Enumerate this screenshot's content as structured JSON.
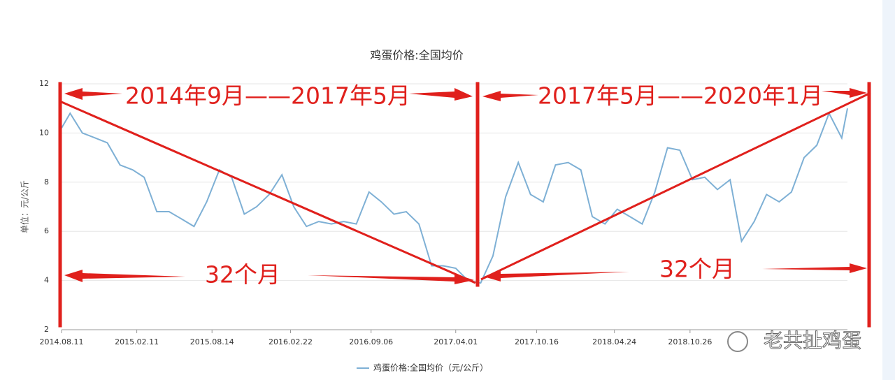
{
  "chart_data": {
    "type": "line",
    "title": "鸡蛋价格:全国均价",
    "y_label": "单位：元/公斤",
    "annotations": [
      "2014年9月——2017年5月",
      "2017年5月——2020年1月",
      "32个月",
      "32个月"
    ],
    "x": [
      "2014.08.11",
      "2014.09.01",
      "2014.10.01",
      "2014.11.01",
      "2014.12.01",
      "2015.01.01",
      "2015.02.01",
      "2015.03.01",
      "2015.04.01",
      "2015.05.01",
      "2015.06.01",
      "2015.07.01",
      "2015.08.01",
      "2015.09.01",
      "2015.10.01",
      "2015.11.01",
      "2015.12.01",
      "2016.01.01",
      "2016.02.01",
      "2016.03.01",
      "2016.04.01",
      "2016.05.01",
      "2016.06.01",
      "2016.07.01",
      "2016.08.01",
      "2016.09.01",
      "2016.10.01",
      "2016.11.01",
      "2016.12.01",
      "2017.01.01",
      "2017.02.01",
      "2017.03.01",
      "2017.04.01",
      "2017.05.01",
      "2017.06.01",
      "2017.07.01",
      "2017.08.01",
      "2017.09.01",
      "2017.10.01",
      "2017.11.01",
      "2017.12.01",
      "2018.01.01",
      "2018.02.01",
      "2018.03.01",
      "2018.04.01",
      "2018.05.01",
      "2018.06.01",
      "2018.07.01",
      "2018.08.01",
      "2018.09.01",
      "2018.10.01",
      "2018.11.01",
      "2018.12.01",
      "2019.01.01",
      "2019.02.01",
      "2019.03.01",
      "2019.04.01",
      "2019.05.01",
      "2019.06.01",
      "2019.07.01",
      "2019.08.01",
      "2019.09.01",
      "2019.10.01",
      "2019.11.01",
      "2019.11.15"
    ],
    "series": [
      {
        "name": "鸡蛋价格:全国均价（元/公斤）",
        "color": "#7eb0d5",
        "values": [
          10.2,
          10.8,
          10.0,
          9.8,
          9.6,
          8.7,
          8.5,
          8.2,
          6.8,
          6.8,
          6.5,
          6.2,
          7.2,
          8.5,
          8.2,
          6.7,
          7.0,
          7.5,
          8.3,
          7.0,
          6.2,
          6.4,
          6.3,
          6.4,
          6.3,
          7.6,
          7.2,
          6.7,
          6.8,
          6.3,
          4.6,
          4.6,
          4.5,
          4.0,
          3.9,
          5.0,
          7.4,
          8.8,
          7.5,
          7.2,
          8.7,
          8.8,
          8.5,
          6.6,
          6.3,
          6.9,
          6.6,
          6.3,
          7.6,
          9.4,
          9.3,
          8.1,
          8.2,
          7.7,
          8.1,
          5.6,
          6.4,
          7.5,
          7.2,
          7.6,
          9.0,
          9.5,
          10.8,
          9.8,
          11.0
        ]
      }
    ],
    "xlim": [
      "2014.08.11",
      "2019.11.15"
    ],
    "xticks": [
      "2014.08.11",
      "2015.02.11",
      "2015.08.14",
      "2016.02.22",
      "2016.09.06",
      "2017.04.01",
      "2017.10.16",
      "2018.04.24",
      "2018.10.26"
    ],
    "ylim": [
      2,
      12
    ],
    "yticks": [
      2,
      4,
      6,
      8,
      10,
      12
    ],
    "grid": true
  },
  "watermark": "老共扯鸡蛋"
}
